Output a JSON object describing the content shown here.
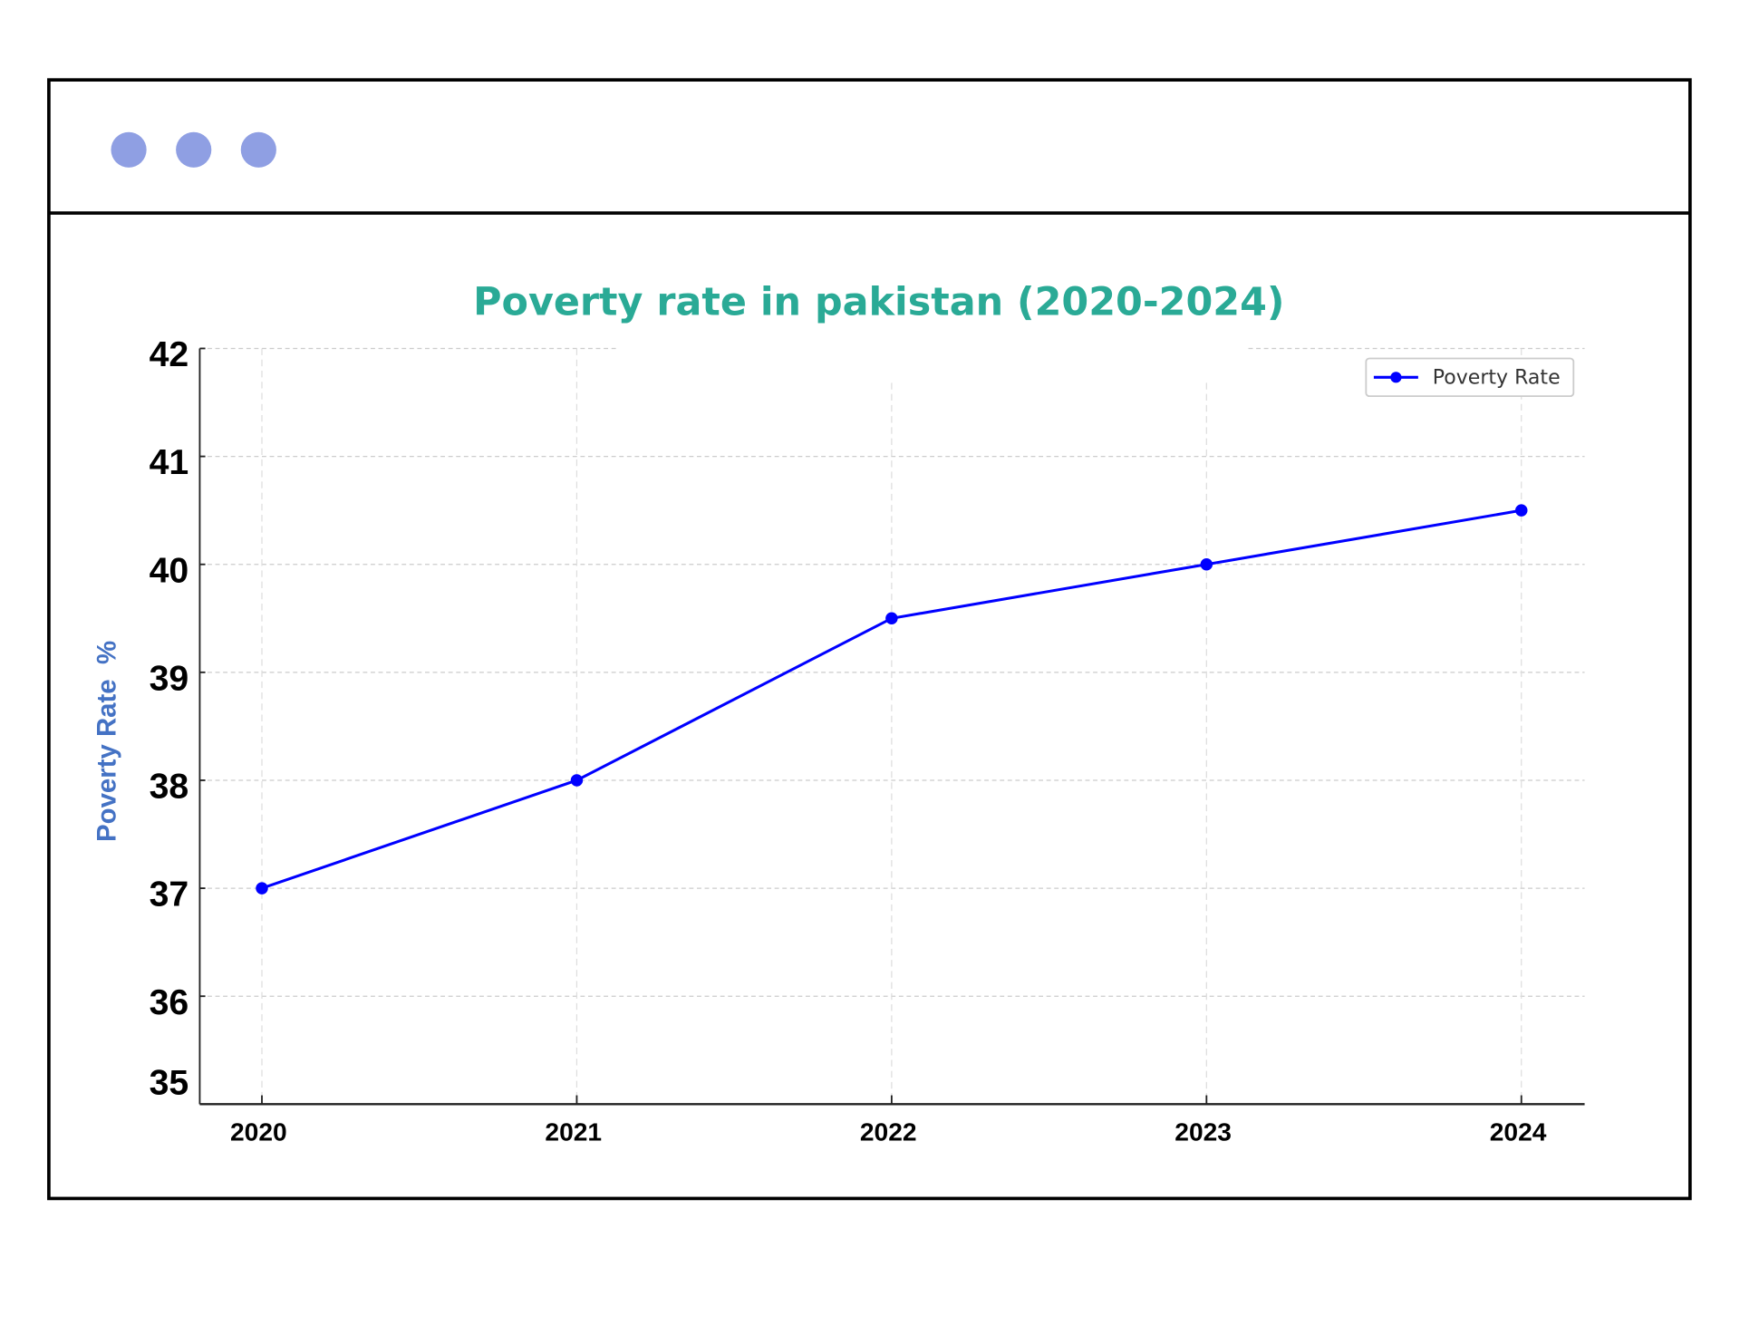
{
  "window": {
    "dots_color": "#8f9fe3",
    "dots": [
      "dot-1",
      "dot-2",
      "dot-3"
    ]
  },
  "chart_data": {
    "type": "line",
    "title": "Poverty rate in pakistan (2020-2024)",
    "title_color": "#2aaa96",
    "xlabel": "",
    "ylabel": "Poverty Rate  %",
    "ylabel_color": "#4472c4",
    "x": [
      "2020",
      "2021",
      "2022",
      "2023",
      "2024"
    ],
    "series": [
      {
        "name": "Poverty Rate",
        "color": "#0000ff",
        "values": [
          37,
          38,
          39.5,
          40,
          40.5
        ]
      }
    ],
    "ylim": [
      35,
      42
    ],
    "yticks": [
      "35",
      "36",
      "37",
      "38",
      "39",
      "40",
      "41",
      "42"
    ],
    "grid": true,
    "legend": "top-right"
  }
}
